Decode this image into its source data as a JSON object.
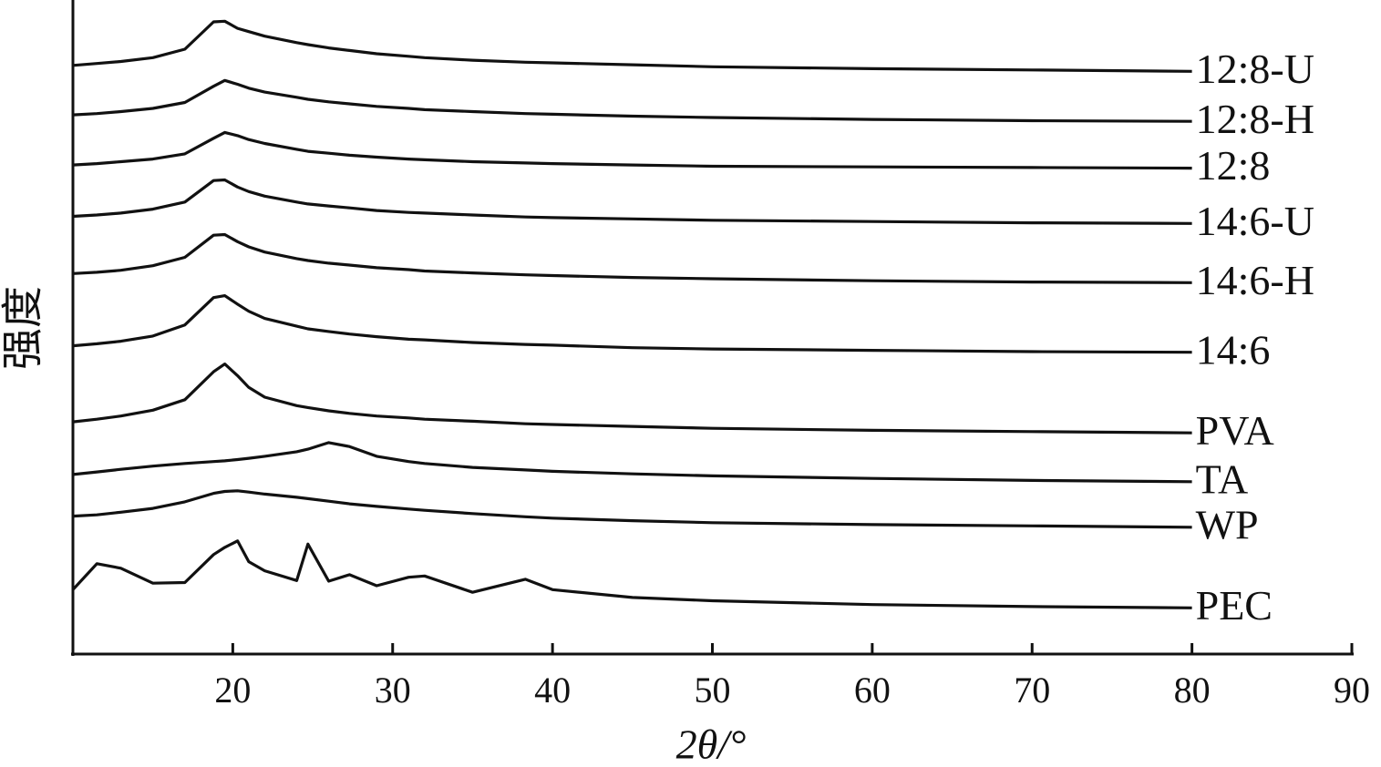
{
  "chart_data": {
    "type": "line",
    "x_label": "2θ/°",
    "y_label": "强度",
    "x": [
      10,
      11.5,
      13,
      15,
      17,
      18.8,
      19.5,
      20.3,
      21,
      22,
      24,
      24.7,
      26,
      27.3,
      29,
      31,
      32,
      35,
      38.3,
      40,
      45,
      50,
      60,
      70,
      80
    ],
    "series": [
      {
        "name": "12:8-U",
        "color": "#111111",
        "values": [
          90.5,
          90.8,
          91.1,
          91.7,
          93.0,
          97.2,
          97.3,
          96.2,
          95.7,
          95.0,
          94.0,
          93.7,
          93.2,
          92.8,
          92.3,
          91.9,
          91.7,
          91.3,
          91.0,
          90.9,
          90.6,
          90.3,
          90.0,
          89.8,
          89.6
        ]
      },
      {
        "name": "12:8-H",
        "color": "#111111",
        "values": [
          82.9,
          83.1,
          83.4,
          83.9,
          84.8,
          87.3,
          88.2,
          87.6,
          87.0,
          86.4,
          85.6,
          85.3,
          84.9,
          84.6,
          84.2,
          83.9,
          83.7,
          83.4,
          83.1,
          83.0,
          82.7,
          82.5,
          82.2,
          82.0,
          81.9
        ]
      },
      {
        "name": "12:8",
        "color": "#111111",
        "values": [
          75.2,
          75.4,
          75.7,
          76.1,
          76.9,
          79.3,
          80.2,
          79.7,
          79.1,
          78.5,
          77.6,
          77.3,
          77.0,
          76.7,
          76.4,
          76.1,
          76.0,
          75.7,
          75.5,
          75.4,
          75.2,
          75.0,
          74.9,
          74.8,
          74.7
        ]
      },
      {
        "name": "14:6-U",
        "color": "#111111",
        "values": [
          67.3,
          67.5,
          67.8,
          68.4,
          69.5,
          72.8,
          72.9,
          71.8,
          71.1,
          70.4,
          69.5,
          69.2,
          68.9,
          68.6,
          68.2,
          67.9,
          67.8,
          67.5,
          67.2,
          67.1,
          66.9,
          66.7,
          66.5,
          66.3,
          66.2
        ]
      },
      {
        "name": "14:6-H",
        "color": "#111111",
        "values": [
          58.5,
          58.7,
          59.0,
          59.7,
          61.0,
          64.4,
          64.5,
          63.4,
          62.6,
          61.8,
          60.8,
          60.5,
          60.1,
          59.8,
          59.4,
          59.1,
          58.9,
          58.6,
          58.3,
          58.2,
          57.9,
          57.7,
          57.4,
          57.2,
          57.1
        ]
      },
      {
        "name": "14:6",
        "color": "#111111",
        "values": [
          47.4,
          47.7,
          48.1,
          48.9,
          50.6,
          54.8,
          55.1,
          53.8,
          52.7,
          51.6,
          50.4,
          50.0,
          49.6,
          49.2,
          48.8,
          48.4,
          48.3,
          47.9,
          47.6,
          47.5,
          47.1,
          46.9,
          46.7,
          46.5,
          46.4
        ]
      },
      {
        "name": "PVA",
        "color": "#111111",
        "values": [
          35.7,
          36.1,
          36.6,
          37.5,
          39.1,
          43.4,
          44.6,
          42.8,
          41.0,
          39.5,
          38.2,
          37.9,
          37.4,
          37.0,
          36.6,
          36.3,
          36.1,
          35.8,
          35.4,
          35.3,
          35.0,
          34.7,
          34.4,
          34.2,
          34.0
        ]
      },
      {
        "name": "TA",
        "color": "#111111",
        "values": [
          27.6,
          28.0,
          28.4,
          28.9,
          29.3,
          29.6,
          29.7,
          29.9,
          30.1,
          30.4,
          31.1,
          31.5,
          32.5,
          31.9,
          30.4,
          29.6,
          29.3,
          28.7,
          28.3,
          28.1,
          27.7,
          27.4,
          27.0,
          26.7,
          26.5
        ]
      },
      {
        "name": "WP",
        "color": "#111111",
        "values": [
          21.2,
          21.4,
          21.8,
          22.4,
          23.4,
          24.7,
          25.0,
          25.1,
          24.9,
          24.6,
          24.1,
          23.9,
          23.5,
          23.1,
          22.7,
          22.3,
          22.1,
          21.6,
          21.1,
          20.9,
          20.5,
          20.2,
          19.9,
          19.7,
          19.5
        ]
      },
      {
        "name": "PEC",
        "color": "#111111",
        "values": [
          9.9,
          13.9,
          13.2,
          10.9,
          11.0,
          15.3,
          16.4,
          17.4,
          14.2,
          12.8,
          11.3,
          16.9,
          11.2,
          12.2,
          10.5,
          11.8,
          12.0,
          9.5,
          11.5,
          9.9,
          8.7,
          8.2,
          7.6,
          7.3,
          7.1
        ]
      }
    ],
    "xlim": [
      10,
      90
    ],
    "ylim": [
      0,
      100
    ],
    "xticks": [
      20,
      30,
      40,
      50,
      60,
      70,
      80,
      90
    ]
  }
}
